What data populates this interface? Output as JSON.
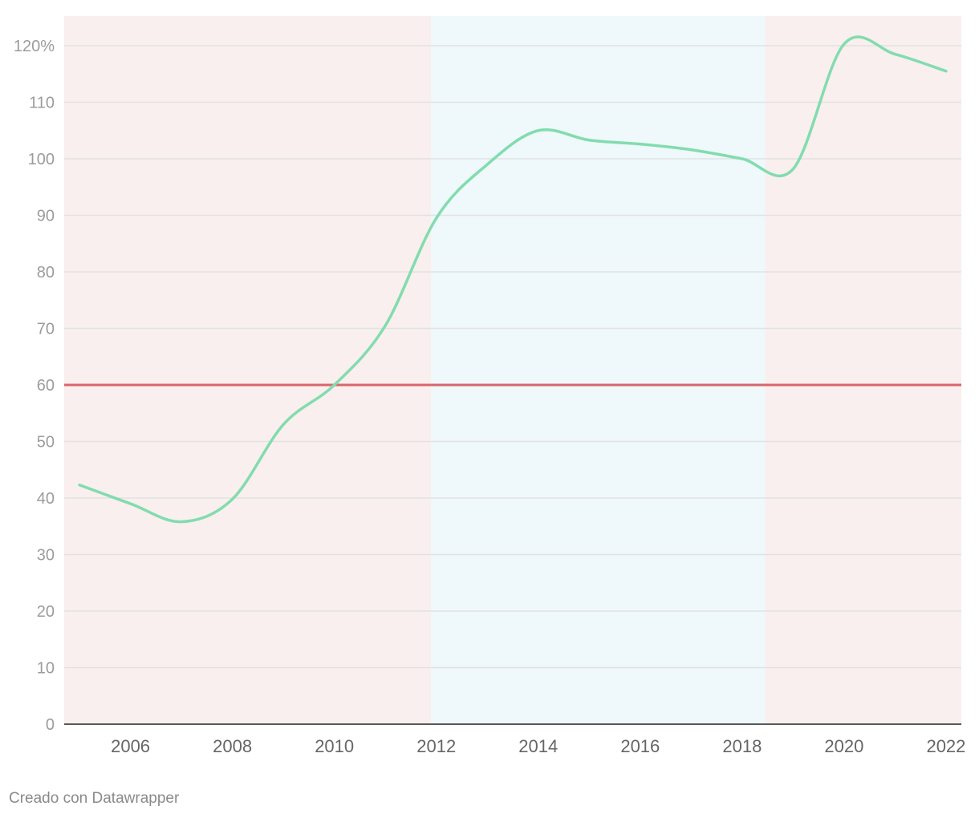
{
  "chart_data": {
    "type": "line",
    "title": "",
    "xlabel": "",
    "ylabel": "",
    "xlim": [
      2004.7,
      2022.3
    ],
    "ylim": [
      0,
      125
    ],
    "y_ticks": [
      0,
      10,
      20,
      30,
      40,
      50,
      60,
      70,
      80,
      90,
      100,
      110,
      120
    ],
    "y_tick_labels": [
      "0",
      "10",
      "20",
      "30",
      "40",
      "50",
      "60",
      "70",
      "80",
      "90",
      "100",
      "110",
      "120%"
    ],
    "x_ticks": [
      2006,
      2008,
      2010,
      2012,
      2014,
      2016,
      2018,
      2020,
      2022
    ],
    "x_tick_labels": [
      "2006",
      "2008",
      "2010",
      "2012",
      "2014",
      "2016",
      "2018",
      "2020",
      "2022"
    ],
    "grid": true,
    "series": [
      {
        "color": "#82dcae",
        "x": [
          2005,
          2006,
          2007,
          2008,
          2009,
          2010,
          2011,
          2012,
          2013,
          2014,
          2015,
          2016,
          2017,
          2018,
          2019,
          2020,
          2021,
          2022
        ],
        "values": [
          42.3,
          39.0,
          35.8,
          39.8,
          53.0,
          60.0,
          70.5,
          89.5,
          99.0,
          105.0,
          103.3,
          102.6,
          101.6,
          100.0,
          98.2,
          120.3,
          118.5,
          115.5
        ]
      }
    ],
    "reference_line": {
      "y": 60,
      "color": "#d9666b"
    },
    "bands": [
      {
        "from": 2004.7,
        "to": 2011.9,
        "color": "#f9efee"
      },
      {
        "from": 2011.9,
        "to": 2018.45,
        "color": "#eff8fb"
      },
      {
        "from": 2018.45,
        "to": 2022.3,
        "color": "#f9efee"
      }
    ]
  },
  "footer": {
    "credit": "Creado con Datawrapper"
  }
}
